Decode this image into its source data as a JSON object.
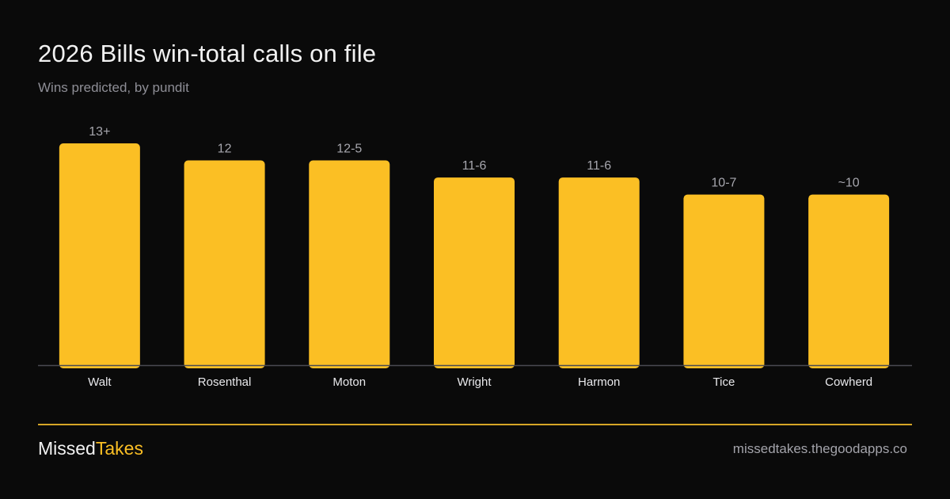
{
  "header": {
    "title": "2026 Bills win-total calls on file",
    "subtitle": "Wins predicted, by pundit"
  },
  "chart_data": {
    "type": "bar",
    "title": "2026 Bills win-total calls on file",
    "subtitle": "Wins predicted, by pundit",
    "xlabel": "",
    "ylabel": "",
    "categories": [
      "Walt",
      "Rosenthal",
      "Moton",
      "Wright",
      "Harmon",
      "Tice",
      "Cowherd"
    ],
    "values": [
      13,
      12,
      12,
      11,
      11,
      10,
      10
    ],
    "value_labels": [
      "13+",
      "12",
      "12-5",
      "11-6",
      "11-6",
      "10-7",
      "~10"
    ],
    "ylim": [
      0,
      13
    ],
    "grid": false,
    "legend": "none",
    "bar_color": "#fbbf24",
    "axis_color": "#4a4a52"
  },
  "footer": {
    "brand_part1": "Missed",
    "brand_part2": "Takes",
    "site": "missedtakes.thegoodapps.co",
    "accent_color": "#fbbf24"
  }
}
